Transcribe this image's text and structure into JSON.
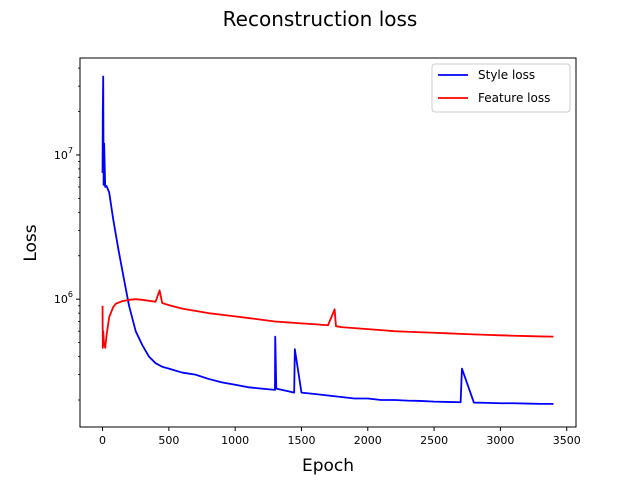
{
  "chart_data": {
    "type": "line",
    "title": "Reconstruction loss",
    "xlabel": "Epoch",
    "ylabel": "Loss",
    "yscale": "log",
    "xlim": [
      -170,
      3570
    ],
    "ylim": [
      130000,
      47000000
    ],
    "grid": false,
    "legend_position": "top-right",
    "x_ticks": [
      {
        "value": 0,
        "label": "0"
      },
      {
        "value": 500,
        "label": "500"
      },
      {
        "value": 1000,
        "label": "1000"
      },
      {
        "value": 1500,
        "label": "1500"
      },
      {
        "value": 2000,
        "label": "2000"
      },
      {
        "value": 2500,
        "label": "2500"
      },
      {
        "value": 3000,
        "label": "3000"
      },
      {
        "value": 3500,
        "label": "3500"
      }
    ],
    "y_ticks": [
      {
        "value": 1000000,
        "label": "10^6",
        "base": "10",
        "exp": "6"
      },
      {
        "value": 10000000,
        "label": "10^7",
        "base": "10",
        "exp": "7"
      }
    ],
    "series": [
      {
        "name": "Style loss",
        "color": "#0000ff",
        "x": [
          0,
          2,
          5,
          8,
          12,
          20,
          30,
          50,
          80,
          120,
          160,
          200,
          250,
          300,
          350,
          400,
          450,
          500,
          600,
          700,
          800,
          900,
          1000,
          1100,
          1200,
          1300,
          1302,
          1310,
          1400,
          1445,
          1450,
          1500,
          1600,
          1700,
          1800,
          1900,
          2000,
          2100,
          2200,
          2300,
          2400,
          2500,
          2600,
          2700,
          2710,
          2800,
          2900,
          3000,
          3100,
          3200,
          3300,
          3400
        ],
        "y": [
          7500000,
          20000000,
          35000000,
          6200000,
          12000000,
          6000000,
          6100000,
          5500000,
          3600000,
          2200000,
          1400000,
          900000,
          600000,
          480000,
          400000,
          360000,
          340000,
          330000,
          310000,
          300000,
          280000,
          265000,
          255000,
          245000,
          240000,
          235000,
          550000,
          240000,
          230000,
          225000,
          450000,
          225000,
          220000,
          215000,
          210000,
          205000,
          205000,
          200000,
          200000,
          198000,
          197000,
          195000,
          194000,
          193000,
          330000,
          192000,
          191000,
          190000,
          190000,
          189000,
          188000,
          188000
        ]
      },
      {
        "name": "Feature loss",
        "color": "#ff0000",
        "x": [
          0,
          2,
          5,
          10,
          20,
          30,
          50,
          80,
          100,
          150,
          200,
          250,
          300,
          400,
          430,
          450,
          500,
          600,
          700,
          800,
          900,
          1000,
          1100,
          1200,
          1300,
          1400,
          1500,
          1600,
          1700,
          1750,
          1760,
          1800,
          1900,
          2000,
          2100,
          2200,
          2300,
          2400,
          2500,
          2600,
          2700,
          2800,
          2900,
          3000,
          3100,
          3200,
          3300,
          3400
        ],
        "y": [
          900000,
          460000,
          600000,
          500000,
          460000,
          560000,
          750000,
          880000,
          930000,
          970000,
          990000,
          1000000,
          990000,
          960000,
          1150000,
          940000,
          910000,
          860000,
          830000,
          800000,
          780000,
          760000,
          740000,
          720000,
          700000,
          690000,
          680000,
          670000,
          660000,
          850000,
          650000,
          640000,
          630000,
          620000,
          610000,
          600000,
          595000,
          590000,
          585000,
          580000,
          575000,
          570000,
          566000,
          562000,
          558000,
          555000,
          552000,
          550000
        ]
      }
    ]
  }
}
